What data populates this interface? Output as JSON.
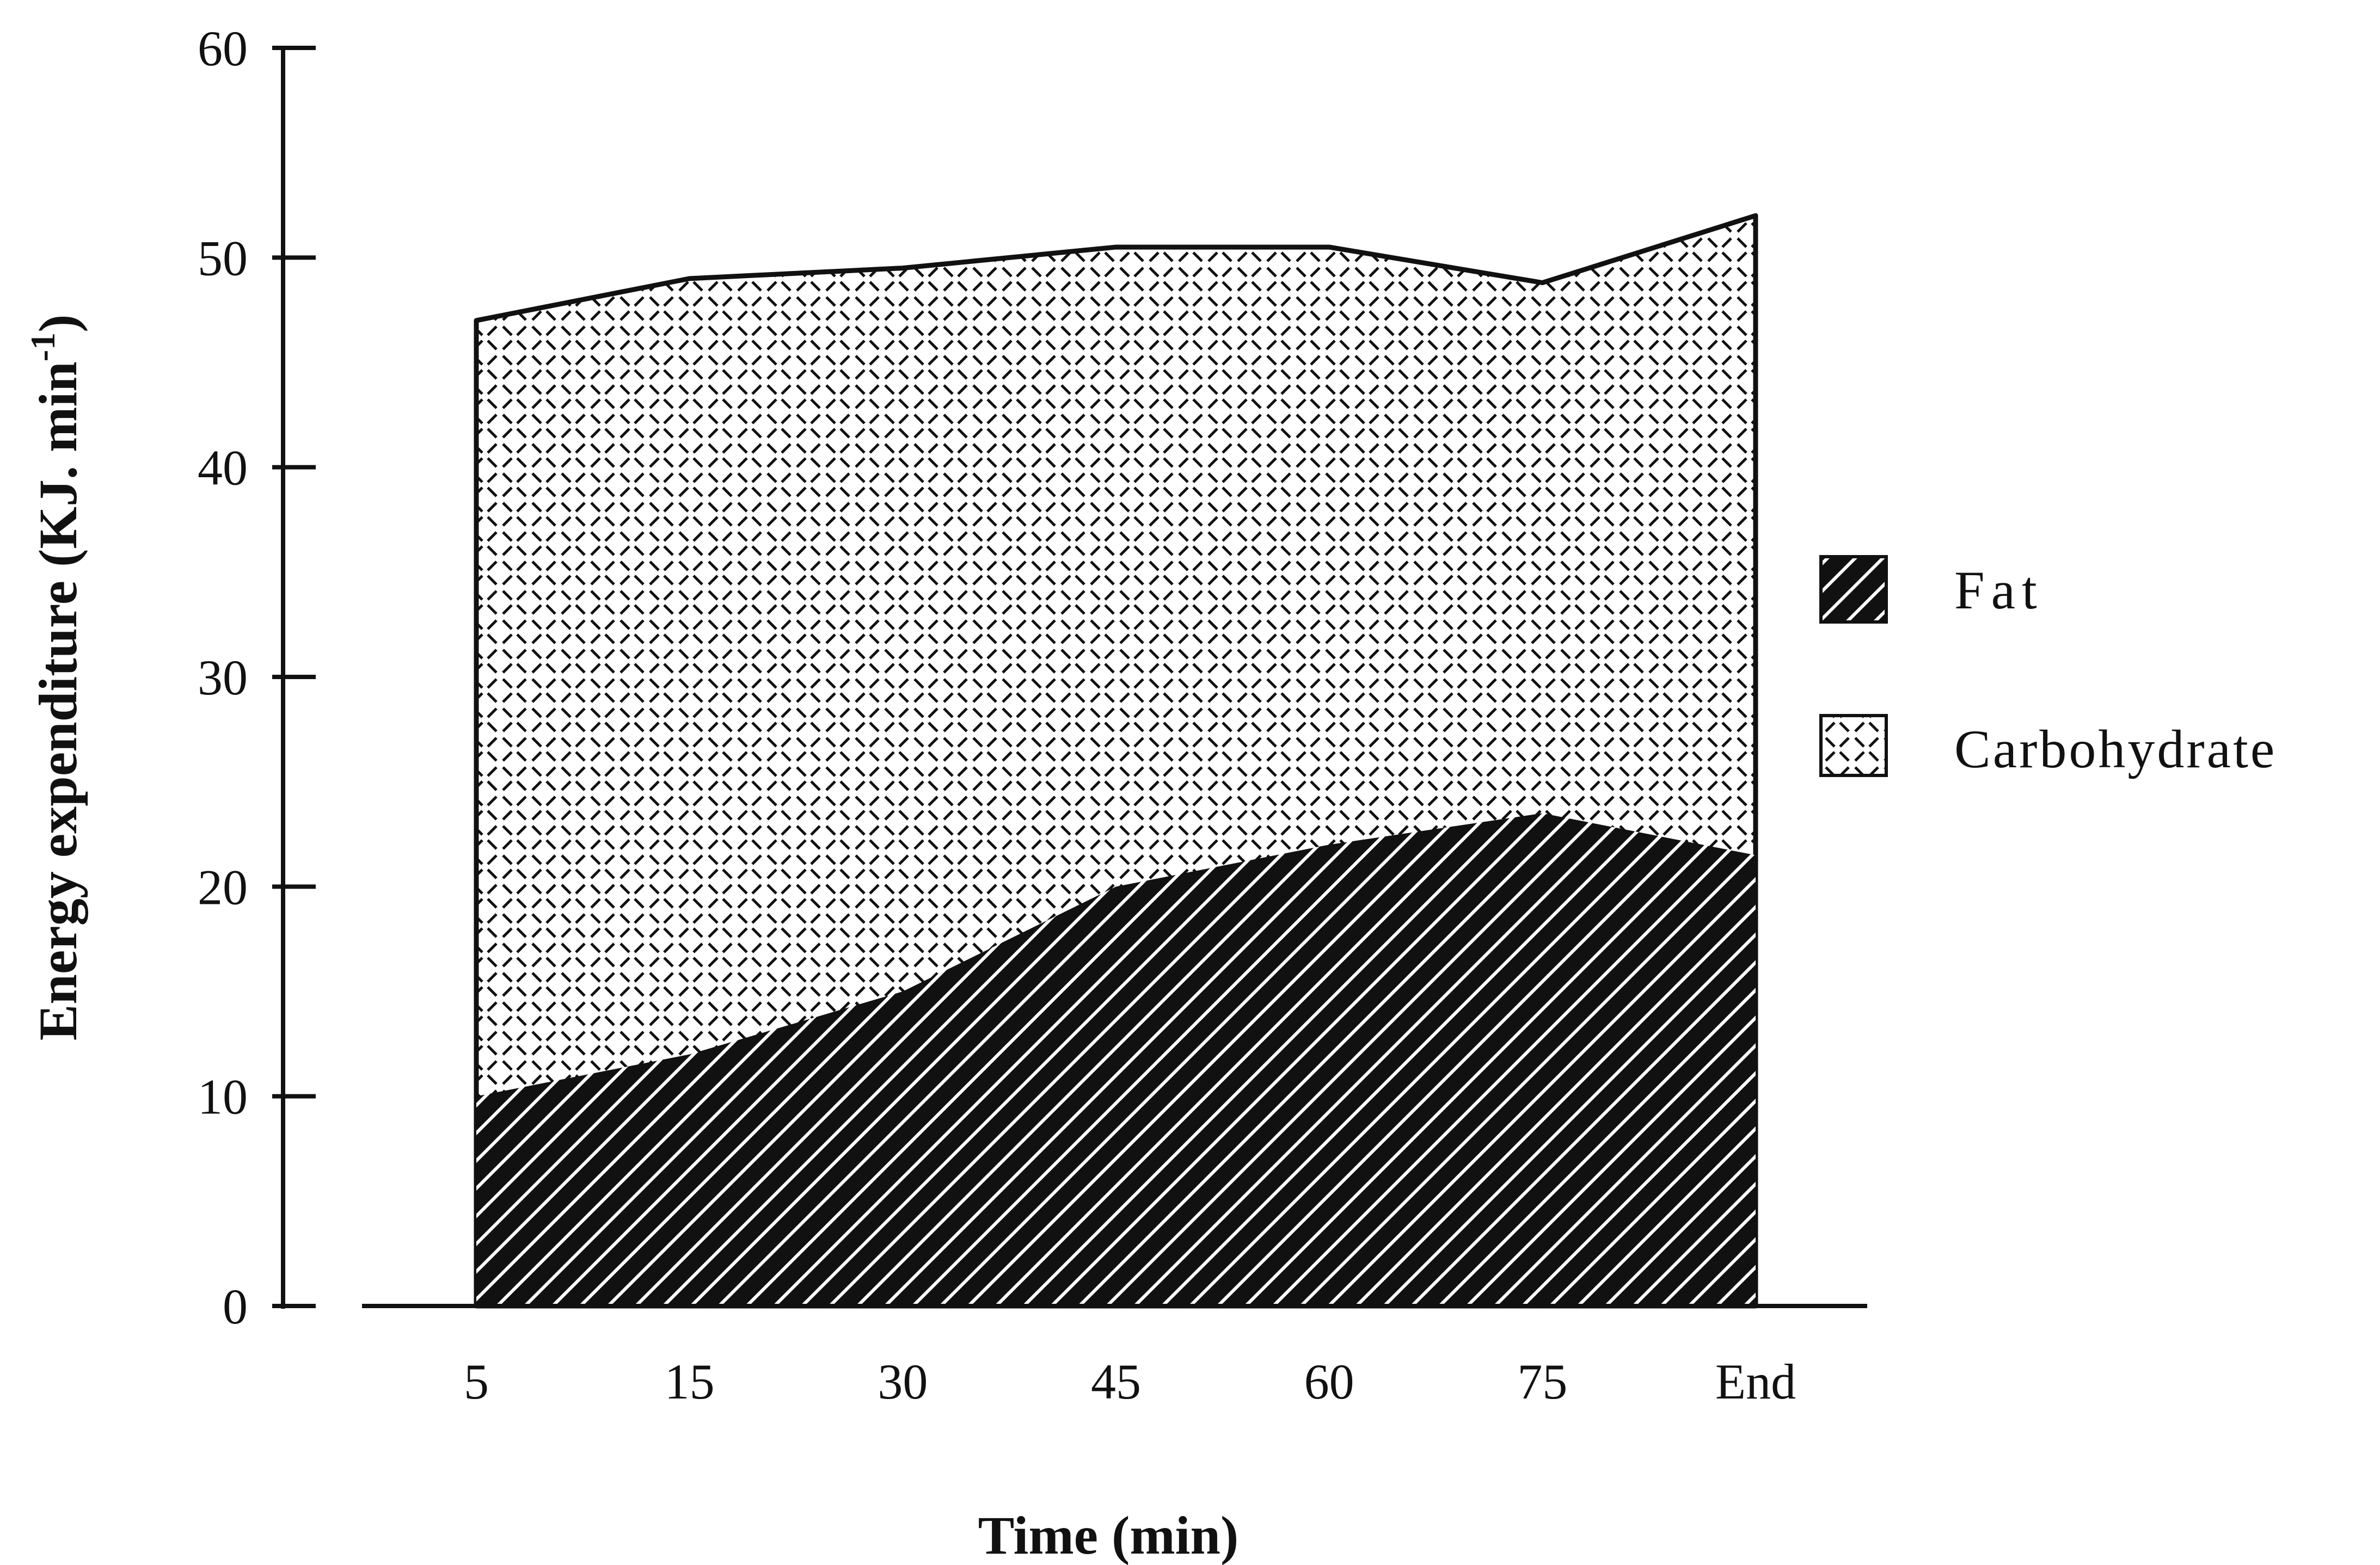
{
  "chart_data": {
    "type": "area",
    "stacked": true,
    "title": "",
    "xlabel": "Time (min)",
    "ylabel": "Energy expenditure (KJ. min",
    "ylabel_sup": "-1",
    "ylabel_close": ")",
    "categories": [
      "5",
      "15",
      "30",
      "45",
      "60",
      "75",
      "End"
    ],
    "ylim": [
      0,
      60
    ],
    "yticks": [
      "0",
      "10",
      "20",
      "30",
      "40",
      "50",
      "60"
    ],
    "ytick_values": [
      0,
      10,
      20,
      30,
      40,
      50,
      60
    ],
    "grid": false,
    "legend_position": "right",
    "series": [
      {
        "name": "Fat",
        "pattern": "diagonal-hatch-dark",
        "values": [
          10,
          12,
          15,
          20,
          22,
          23.5,
          21.5
        ]
      },
      {
        "name": "Carbohydrate",
        "pattern": "dashed-crosshatch-light",
        "values": [
          37,
          37,
          34.5,
          30.5,
          28.5,
          25.3,
          30.5
        ]
      }
    ],
    "colors": {
      "ink": "#111111",
      "background": "#ffffff"
    }
  }
}
